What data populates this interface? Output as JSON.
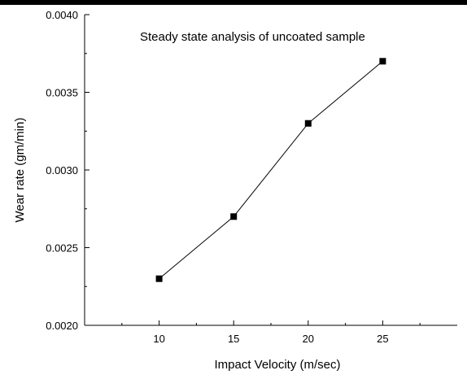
{
  "chart_data": {
    "type": "line",
    "title": "",
    "annotation": "Steady state analysis of uncoated sample",
    "xlabel": "Impact Velocity (m/sec)",
    "ylabel": "Wear rate (gm/min)",
    "x": [
      10,
      15,
      20,
      25
    ],
    "series": [
      {
        "values": [
          0.0023,
          0.0027,
          0.0033,
          0.0037
        ]
      }
    ],
    "xlim": [
      5,
      30
    ],
    "ylim": [
      0.002,
      0.004
    ],
    "xticks": [
      "10",
      "15",
      "20",
      "25"
    ],
    "yticks": [
      "0.0020",
      "0.0025",
      "0.0030",
      "0.0035",
      "0.0040"
    ],
    "grid": false,
    "marker": "square",
    "line_color": "#000000"
  }
}
